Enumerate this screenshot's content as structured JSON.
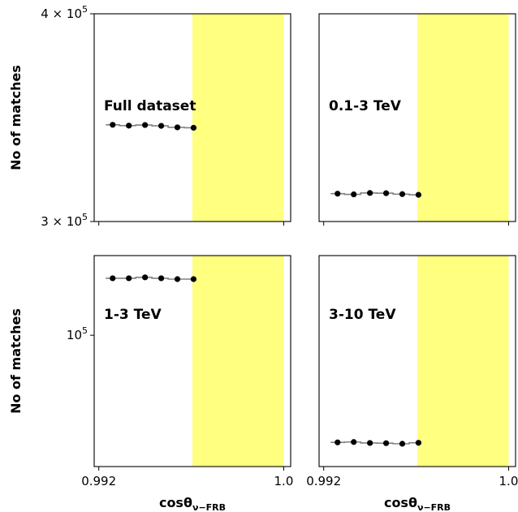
{
  "chart_data": [
    {
      "type": "scatter",
      "label": "Full dataset",
      "ylabel": "No of matches",
      "xlabel": "",
      "xlim": [
        0.9918,
        1.0003
      ],
      "ylim": [
        300000,
        400000
      ],
      "yscale": "log",
      "ytick_labels": [
        {
          "value": 300000,
          "mantissa": "3",
          "exp": "5"
        },
        {
          "value": 400000,
          "mantissa": "4",
          "exp": "5"
        }
      ],
      "xticks": [
        0.992,
        1.0
      ],
      "xtick_labels": [],
      "x": [
        0.9926,
        0.9933,
        0.994,
        0.9947,
        0.9954,
        0.9961
      ],
      "y": [
        343000,
        342600,
        342900,
        342500,
        341800,
        341600
      ],
      "bins": [
        0.9923,
        0.9929,
        0.9936,
        0.9943,
        0.995,
        0.9957,
        0.9962
      ],
      "highlight": [
        0.99605,
        1.0
      ],
      "colors": {
        "points": "#000000",
        "steps": "#808080",
        "highlight": "#ffff80"
      }
    },
    {
      "type": "scatter",
      "label": "0.1-3 TeV",
      "ylabel": "",
      "xlabel": "",
      "xlim": [
        0.9918,
        1.0003
      ],
      "ylim": [
        300000,
        400000
      ],
      "yscale": "log",
      "ytick_labels": [],
      "xticks": [
        0.992,
        1.0
      ],
      "xtick_labels": [],
      "x": [
        0.9926,
        0.9933,
        0.994,
        0.9947,
        0.9954,
        0.9961
      ],
      "y": [
        311800,
        311500,
        312100,
        312000,
        311600,
        311300
      ],
      "bins": [
        0.9923,
        0.9929,
        0.9936,
        0.9943,
        0.995,
        0.9957,
        0.9962
      ],
      "highlight": [
        0.99605,
        1.0
      ],
      "colors": {
        "points": "#000000",
        "steps": "#808080",
        "highlight": "#ffff80"
      }
    },
    {
      "type": "scatter",
      "label": "1-3 TeV",
      "ylabel": "No of matches",
      "xlabel": "cosθν−FRB",
      "xlim": [
        0.9918,
        1.0003
      ],
      "ylim": [
        93000,
        104500
      ],
      "yscale": "log",
      "ytick_labels": [
        {
          "value": 100000,
          "mantissa": "",
          "exp": "5"
        }
      ],
      "xticks": [
        0.992,
        1.0
      ],
      "xtick_labels": [
        "0.992",
        "1.0"
      ],
      "x": [
        0.9926,
        0.9933,
        0.994,
        0.9947,
        0.9954,
        0.9961
      ],
      "y": [
        103200,
        103200,
        103250,
        103200,
        103150,
        103150
      ],
      "bins": [
        0.9923,
        0.9929,
        0.9936,
        0.9943,
        0.995,
        0.9957,
        0.9962
      ],
      "highlight": [
        0.99605,
        1.0
      ],
      "colors": {
        "points": "#000000",
        "steps": "#808080",
        "highlight": "#ffff80"
      }
    },
    {
      "type": "scatter",
      "label": "3-10 TeV",
      "ylabel": "",
      "xlabel": "cosθν−FRB",
      "xlim": [
        0.9918,
        1.0003
      ],
      "ylim": [
        93000,
        104500
      ],
      "yscale": "log",
      "ytick_labels": [],
      "xticks": [
        0.992,
        1.0
      ],
      "xtick_labels": [
        "0.992",
        "1.0"
      ],
      "x": [
        0.9926,
        0.9933,
        0.994,
        0.9947,
        0.9954,
        0.9961
      ],
      "y": [
        94250,
        94270,
        94220,
        94210,
        94180,
        94230
      ],
      "bins": [
        0.9923,
        0.9929,
        0.9936,
        0.9943,
        0.995,
        0.9957,
        0.9962
      ],
      "highlight": [
        0.99605,
        1.0
      ],
      "colors": {
        "points": "#000000",
        "steps": "#808080",
        "highlight": "#ffff80"
      }
    }
  ]
}
